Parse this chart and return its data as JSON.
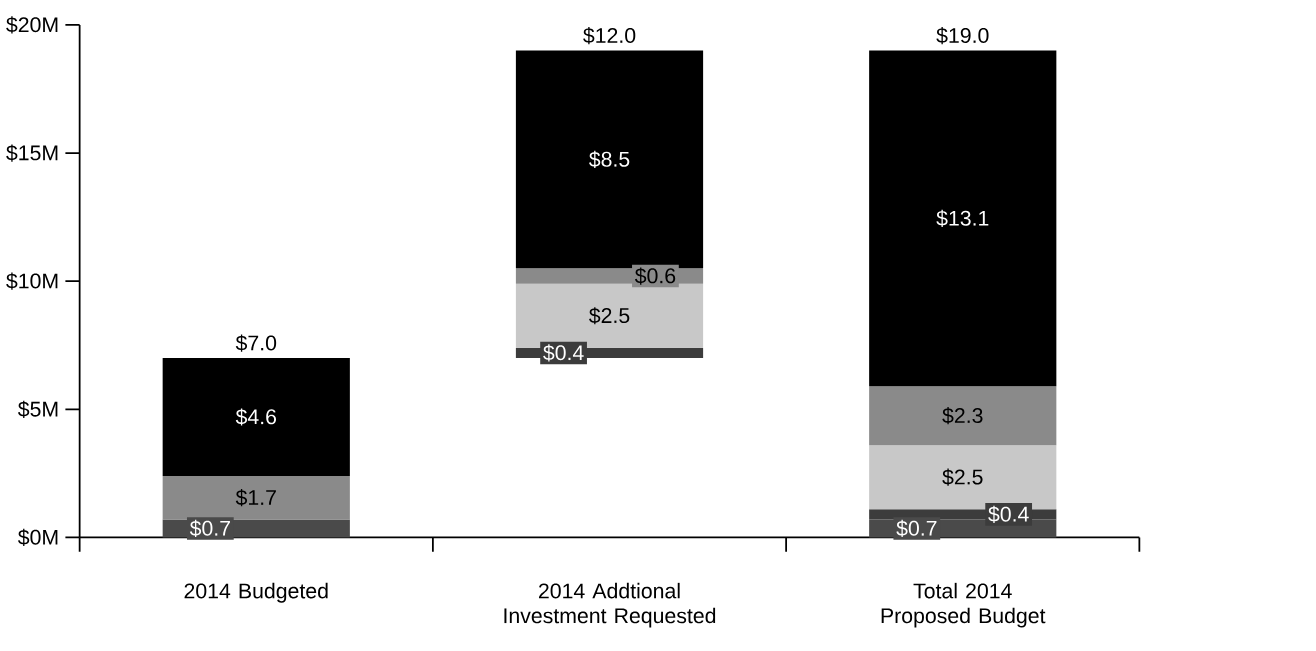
{
  "chart_data": {
    "type": "bar",
    "categories": [
      "2014 Budgeted",
      "2014 Addtional Investment Requested",
      "Total 2014 Proposed Budget"
    ],
    "series": [
      {
        "color": "#4a4a4a",
        "values": [
          0.7,
          null,
          0.7
        ],
        "base": [
          0,
          null,
          0
        ],
        "value_labels": [
          "$0.7",
          null,
          "$0.7"
        ]
      },
      {
        "color": "#3c3c3c",
        "values": [
          null,
          0.4,
          0.4
        ],
        "base": [
          null,
          7.0,
          0.7
        ],
        "value_labels": [
          null,
          "$0.4",
          "$0.4"
        ]
      },
      {
        "color": "#c8c8c8",
        "values": [
          null,
          2.5,
          2.5
        ],
        "base": [
          null,
          7.4,
          1.1
        ],
        "value_labels": [
          null,
          "$2.5",
          "$2.5"
        ]
      },
      {
        "color": "#8a8a8a",
        "values": [
          1.7,
          0.6,
          2.3
        ],
        "base": [
          0.7,
          9.9,
          3.6
        ],
        "value_labels": [
          "$1.7",
          "$0.6",
          "$2.3"
        ]
      },
      {
        "color": "#000000",
        "values": [
          4.6,
          8.5,
          13.1
        ],
        "base": [
          2.4,
          10.5,
          5.9
        ],
        "value_labels": [
          "$4.6",
          "$8.5",
          "$13.1"
        ]
      }
    ],
    "totals": [
      "$7.0",
      "$12.0",
      "$19.0"
    ],
    "ylim": [
      0,
      20
    ],
    "yticks": [
      {
        "value": 0,
        "label": "$0M"
      },
      {
        "value": 5,
        "label": "$5M"
      },
      {
        "value": 10,
        "label": "$10M"
      },
      {
        "value": 15,
        "label": "$15M"
      },
      {
        "value": 20,
        "label": "$20M"
      }
    ],
    "grid": false
  }
}
